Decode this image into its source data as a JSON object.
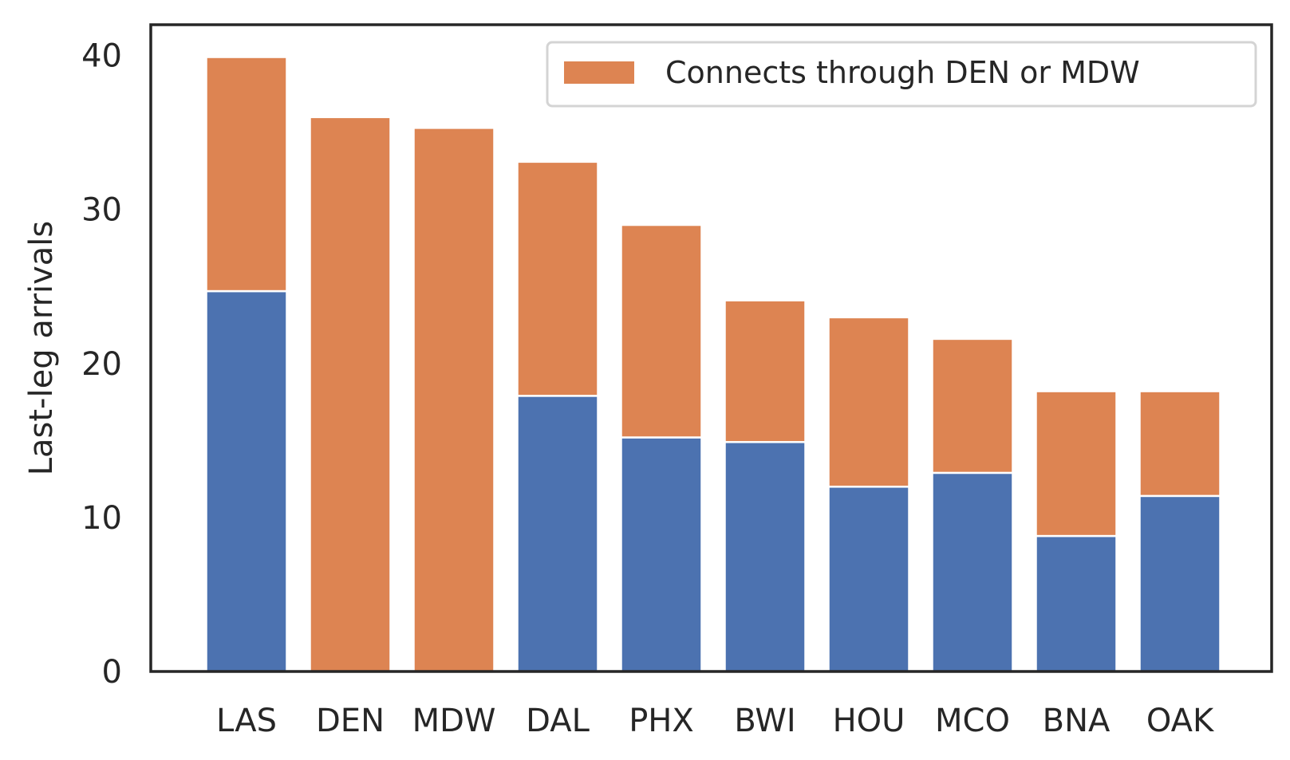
{
  "chart_data": {
    "type": "bar",
    "stacked": true,
    "categories": [
      "LAS",
      "DEN",
      "MDW",
      "DAL",
      "PHX",
      "BWI",
      "HOU",
      "MCO",
      "BNA",
      "OAK"
    ],
    "series": [
      {
        "values": [
          24.7,
          0,
          0,
          17.9,
          15.2,
          14.9,
          12.0,
          12.9,
          8.8,
          11.4
        ],
        "color": "#4c72b0"
      },
      {
        "name": "Connects through DEN or MDW",
        "values": [
          15.2,
          36.0,
          35.3,
          15.2,
          13.8,
          9.2,
          11.0,
          8.7,
          9.4,
          6.8
        ],
        "color": "#dd8452"
      }
    ],
    "ylabel": "Last-leg arrivals",
    "xlabel": "",
    "ylim": [
      0,
      42
    ],
    "yticks": [
      "0",
      "10",
      "20",
      "30",
      "40"
    ],
    "grid": false,
    "legend": "top-right"
  }
}
